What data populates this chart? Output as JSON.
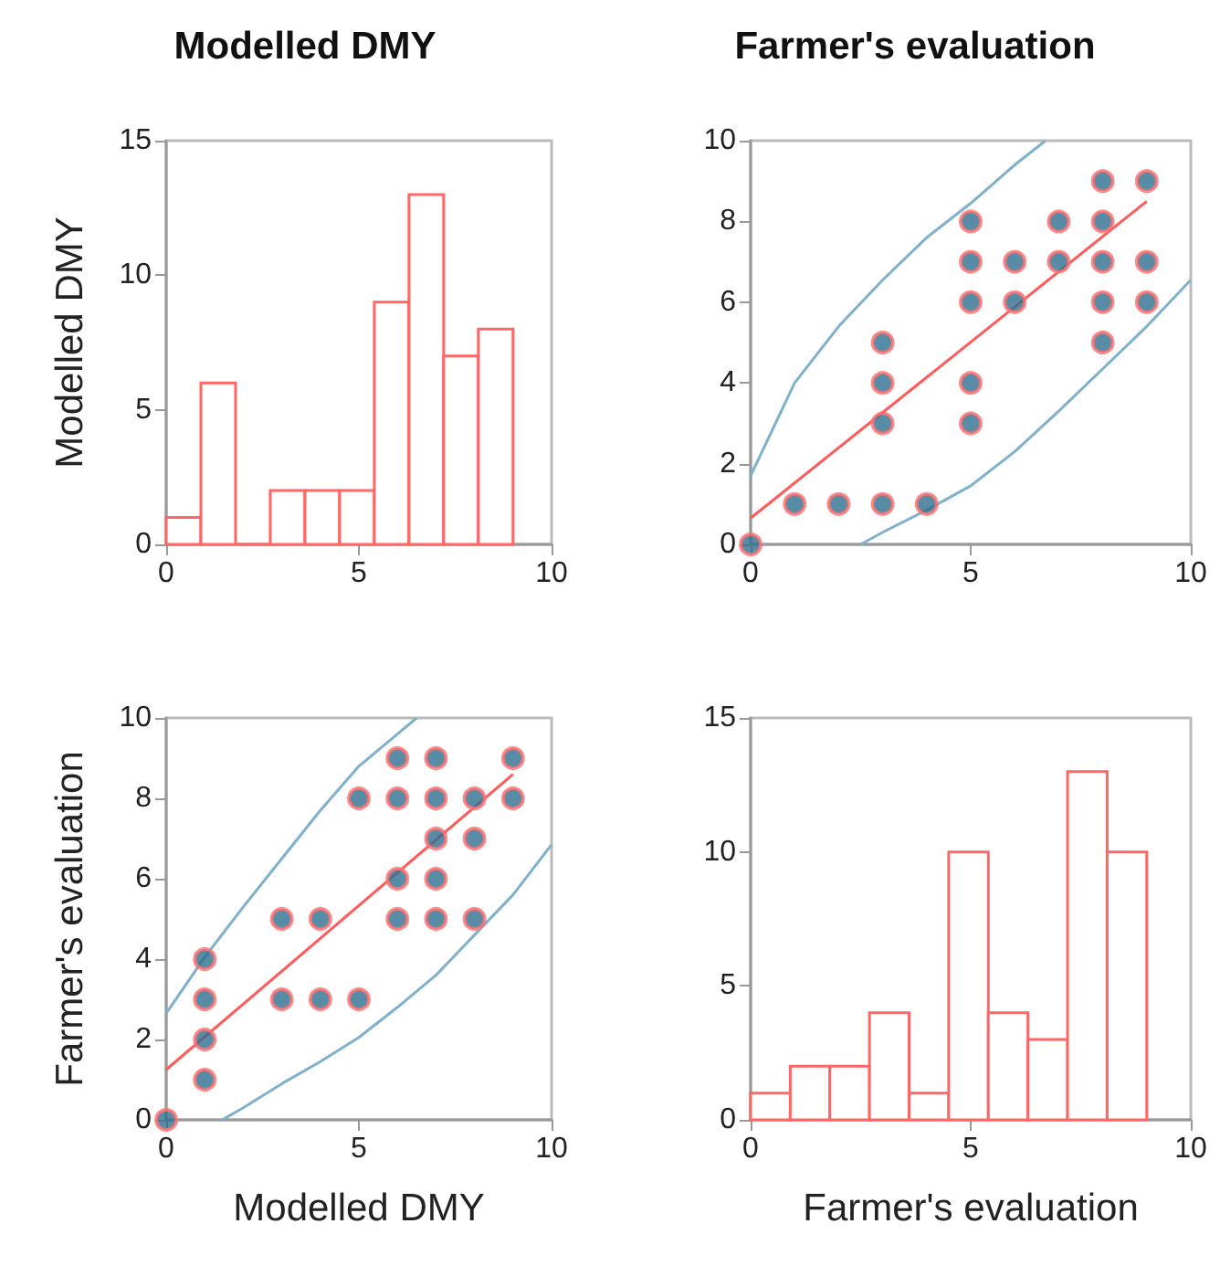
{
  "chart_data": [
    {
      "type": "histogram",
      "title": "Modelled DMY",
      "ylabel": "Modelled DMY",
      "color": "#ff6666",
      "bins": [
        0,
        0.9,
        1.8,
        2.7,
        3.6,
        4.5,
        5.4,
        6.3,
        7.2,
        8.1,
        9
      ],
      "values": [
        1,
        6,
        0,
        2,
        2,
        2,
        9,
        13,
        7,
        8
      ],
      "xlim": [
        0,
        10
      ],
      "ylim": [
        0,
        15
      ],
      "xticks": [
        0,
        5,
        10
      ],
      "yticks": [
        0,
        5,
        10,
        15
      ],
      "grid": false
    },
    {
      "type": "scatter",
      "title": "Farmer's evaluation",
      "xlim": [
        0,
        10
      ],
      "ylim": [
        0,
        10
      ],
      "xticks": [
        0,
        5,
        10
      ],
      "yticks": [
        0,
        2,
        4,
        6,
        8,
        10
      ],
      "grid": false,
      "series": [
        {
          "type": "scatter",
          "marker": "circle",
          "color": "#2e6e8e",
          "x": [
            0,
            1,
            2,
            3,
            4,
            3,
            3,
            3,
            5,
            5,
            5,
            5,
            5,
            6,
            6,
            7,
            7,
            8,
            8,
            8,
            8,
            8,
            9,
            9,
            9
          ],
          "values": [
            0,
            1,
            1,
            1,
            1,
            3,
            4,
            5,
            3,
            4,
            6,
            7,
            8,
            6,
            7,
            7,
            8,
            5,
            6,
            7,
            8,
            9,
            6,
            7,
            9
          ]
        },
        {
          "type": "line",
          "marker": "none",
          "color": "#ff5b5b",
          "x": [
            0,
            9
          ],
          "values": [
            0.65,
            8.5
          ]
        },
        {
          "type": "line",
          "marker": "none",
          "color": "#7fb0cc",
          "x": [
            0,
            1,
            2,
            3,
            4,
            5,
            6,
            6.7
          ],
          "values": [
            1.7,
            4.0,
            5.4,
            6.55,
            7.6,
            8.45,
            9.4,
            10
          ]
        },
        {
          "type": "line",
          "marker": "none",
          "color": "#7fb0cc",
          "x": [
            2.5,
            3,
            4,
            5,
            6,
            7,
            8,
            9,
            10
          ],
          "values": [
            0,
            0.3,
            0.85,
            1.45,
            2.3,
            3.3,
            4.35,
            5.4,
            6.55
          ]
        }
      ]
    },
    {
      "type": "scatter",
      "xlabel": "Modelled DMY",
      "ylabel": "Farmer's evaluation",
      "xlim": [
        0,
        10
      ],
      "ylim": [
        0,
        10
      ],
      "xticks": [
        0,
        5,
        10
      ],
      "yticks": [
        0,
        2,
        4,
        6,
        8,
        10
      ],
      "grid": false,
      "series": [
        {
          "type": "scatter",
          "marker": "circle",
          "color": "#2e6e8e",
          "x": [
            0,
            1,
            1,
            1,
            1,
            3,
            4,
            5,
            3,
            4,
            6,
            7,
            8,
            6,
            7,
            7,
            8,
            5,
            6,
            7,
            8,
            9,
            6,
            7,
            9
          ],
          "values": [
            0,
            1,
            2,
            3,
            4,
            3,
            3,
            3,
            5,
            5,
            5,
            5,
            5,
            6,
            6,
            7,
            7,
            8,
            8,
            8,
            8,
            8,
            9,
            9,
            9
          ]
        },
        {
          "type": "line",
          "marker": "none",
          "color": "#ff5b5b",
          "x": [
            0,
            9
          ],
          "values": [
            1.25,
            8.6
          ]
        },
        {
          "type": "line",
          "marker": "none",
          "color": "#7fb0cc",
          "x": [
            0,
            1,
            2,
            3,
            4,
            5,
            6,
            6.5
          ],
          "values": [
            2.65,
            4.05,
            5.3,
            6.5,
            7.7,
            8.8,
            9.6,
            10
          ]
        },
        {
          "type": "line",
          "marker": "none",
          "color": "#7fb0cc",
          "x": [
            1.45,
            2,
            3,
            4,
            5,
            6,
            7,
            8,
            9,
            10
          ],
          "values": [
            0,
            0.3,
            0.9,
            1.45,
            2.05,
            2.8,
            3.6,
            4.6,
            5.6,
            6.85
          ]
        }
      ]
    },
    {
      "type": "histogram",
      "xlabel": "Farmer's evaluation",
      "color": "#ff6666",
      "bins": [
        0,
        0.9,
        1.8,
        2.7,
        3.6,
        4.5,
        5.4,
        6.3,
        7.2,
        8.1,
        9
      ],
      "values": [
        1,
        2,
        2,
        4,
        1,
        10,
        4,
        3,
        13,
        10
      ],
      "xlim": [
        0,
        10
      ],
      "ylim": [
        0,
        15
      ],
      "xticks": [
        0,
        5,
        10
      ],
      "yticks": [
        0,
        5,
        10,
        15
      ],
      "grid": false
    }
  ]
}
